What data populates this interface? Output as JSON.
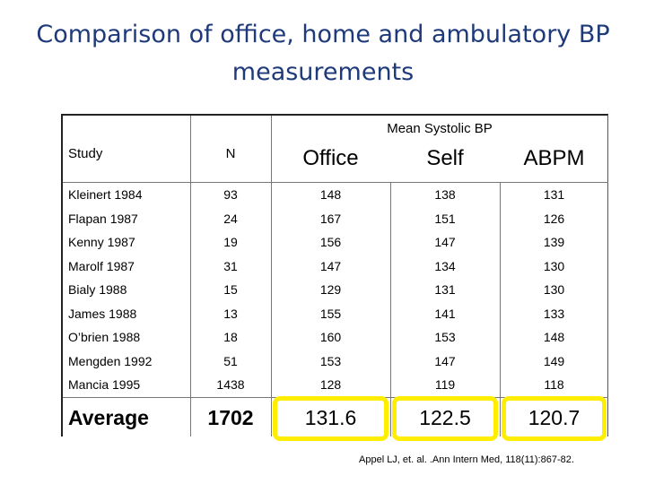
{
  "title": "Comparison of office, home and ambulatory BP measurements",
  "table": {
    "group_header": "Mean Systolic BP",
    "columns": [
      "Study",
      "N",
      "Office",
      "Self",
      "ABPM"
    ],
    "rows": [
      [
        "Kleinert 1984",
        93,
        148,
        138,
        131
      ],
      [
        "Flapan 1987",
        24,
        167,
        151,
        126
      ],
      [
        "Kenny 1987",
        19,
        156,
        147,
        139
      ],
      [
        "Marolf 1987",
        31,
        147,
        134,
        130
      ],
      [
        "Bialy 1988",
        15,
        129,
        131,
        130
      ],
      [
        "James 1988",
        13,
        155,
        141,
        133
      ],
      [
        "O’brien 1988",
        18,
        160,
        153,
        148
      ],
      [
        "Mengden 1992",
        51,
        153,
        147,
        149
      ],
      [
        "Mancia 1995",
        1438,
        128,
        119,
        118
      ]
    ],
    "summary_row": [
      "Average",
      1702,
      131.6,
      122.5,
      120.7
    ]
  },
  "citation": "Appel LJ,  et. al.  .Ann Intern Med, 118(11):867-82."
}
